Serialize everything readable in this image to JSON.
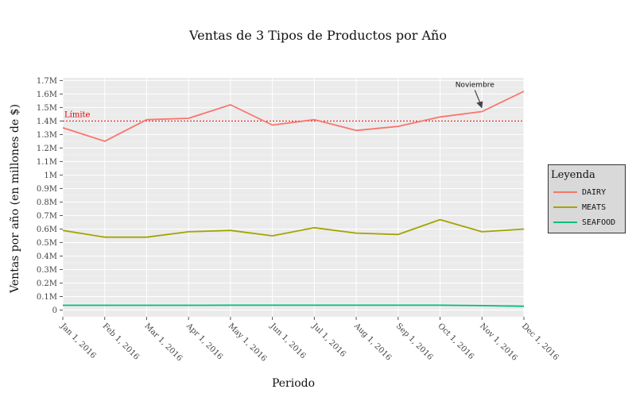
{
  "chart_data": {
    "type": "line",
    "title": "Ventas de 3 Tipos de Productos por Año",
    "xlabel": "Periodo",
    "ylabel": "Ventas por año (en millones de $)",
    "categories": [
      "Jan 1, 2016",
      "Feb 1, 2016",
      "Mar 1, 2016",
      "Apr 1, 2016",
      "May 1, 2016",
      "Jun 1, 2016",
      "Jul 1, 2016",
      "Aug 1, 2016",
      "Sep 1, 2016",
      "Oct 1, 2016",
      "Nov 1, 2016",
      "Dec 1, 2016"
    ],
    "yticks": [
      {
        "value": 0,
        "label": "0"
      },
      {
        "value": 0.1,
        "label": "0.1M"
      },
      {
        "value": 0.2,
        "label": "0.2M"
      },
      {
        "value": 0.3,
        "label": "0.3M"
      },
      {
        "value": 0.4,
        "label": "0.4M"
      },
      {
        "value": 0.5,
        "label": "0.5M"
      },
      {
        "value": 0.6,
        "label": "0.6M"
      },
      {
        "value": 0.7,
        "label": "0.7M"
      },
      {
        "value": 0.8,
        "label": "0.8M"
      },
      {
        "value": 0.9,
        "label": "0.9M"
      },
      {
        "value": 1.0,
        "label": "1M"
      },
      {
        "value": 1.1,
        "label": "1.1M"
      },
      {
        "value": 1.2,
        "label": "1.2M"
      },
      {
        "value": 1.3,
        "label": "1.3M"
      },
      {
        "value": 1.4,
        "label": "1.4M"
      },
      {
        "value": 1.5,
        "label": "1.5M"
      },
      {
        "value": 1.6,
        "label": "1.6M"
      },
      {
        "value": 1.7,
        "label": "1.7M"
      }
    ],
    "ylim": [
      -0.05,
      1.72
    ],
    "grid": true,
    "series": [
      {
        "name": "DAIRY",
        "color": "#f8766d",
        "values": [
          1.35,
          1.25,
          1.41,
          1.42,
          1.52,
          1.37,
          1.41,
          1.33,
          1.36,
          1.43,
          1.47,
          1.62
        ]
      },
      {
        "name": "MEATS",
        "color": "#a3a500",
        "values": [
          0.59,
          0.54,
          0.54,
          0.58,
          0.59,
          0.55,
          0.61,
          0.57,
          0.56,
          0.67,
          0.58,
          0.6
        ]
      },
      {
        "name": "SEAFOOD",
        "color": "#00bf7d",
        "values": [
          0.035,
          0.035,
          0.035,
          0.035,
          0.036,
          0.036,
          0.036,
          0.036,
          0.036,
          0.036,
          0.033,
          0.028
        ]
      }
    ],
    "reference_line": {
      "value": 1.4,
      "label": "Límite",
      "color": "#e00000"
    },
    "annotation": {
      "text": "Noviembre",
      "series": "DAIRY",
      "category_index": 10
    },
    "legend": {
      "title": "Leyenda",
      "position": "right"
    }
  }
}
